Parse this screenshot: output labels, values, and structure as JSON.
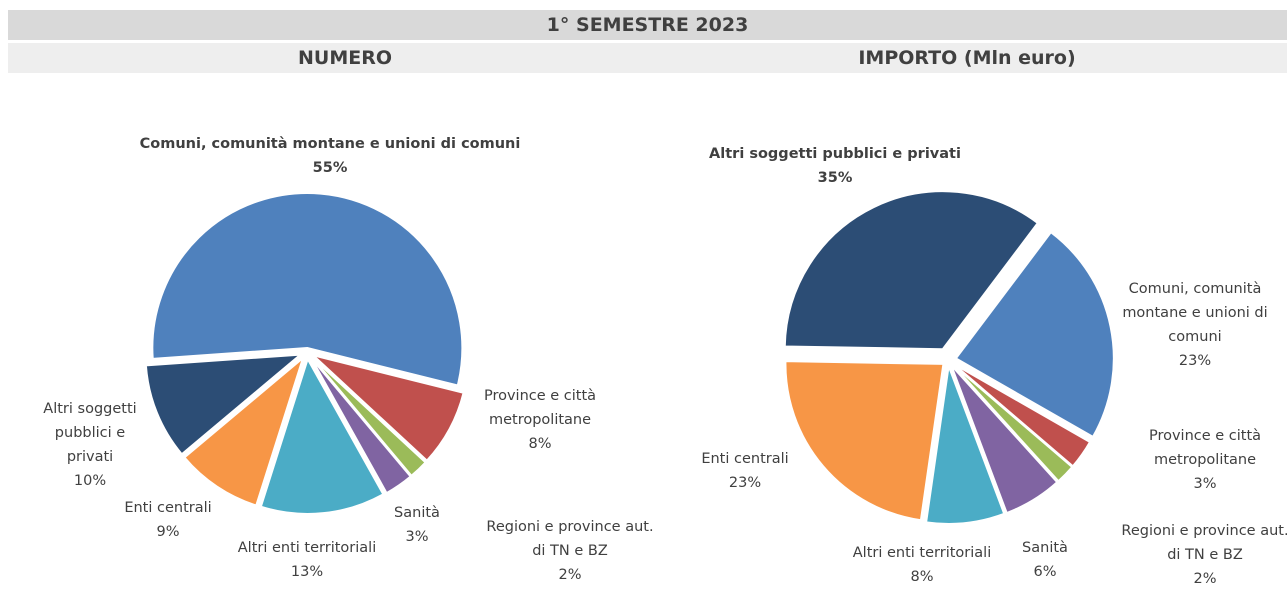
{
  "header": {
    "title": "1° SEMESTRE 2023"
  },
  "chart_data": [
    {
      "type": "pie",
      "title": "NUMERO",
      "categories": [
        "Comuni, comunità montane e unioni di comuni",
        "Province e città metropolitane",
        "Regioni e province aut. di TN e BZ",
        "Sanità",
        "Altri enti territoriali",
        "Enti centrali",
        "Altri soggetti pubblici e privati"
      ],
      "values": [
        55,
        8,
        2,
        3,
        13,
        9,
        10
      ],
      "value_labels": [
        "55%",
        "8%",
        "2%",
        "3%",
        "13%",
        "9%",
        "10%"
      ],
      "colors": [
        "#4f81bd",
        "#c0504d",
        "#9bbb59",
        "#8064a2",
        "#4bacc6",
        "#f79646",
        "#2c4d75"
      ]
    },
    {
      "type": "pie",
      "title": "IMPORTO (Mln euro)",
      "categories": [
        "Altri soggetti pubblici e privati",
        "Comuni, comunità montane e unioni di comuni",
        "Province e città metropolitane",
        "Regioni e province aut. di TN e BZ",
        "Sanità",
        "Altri enti territoriali",
        "Enti centrali"
      ],
      "values": [
        35,
        23,
        3,
        2,
        6,
        8,
        23
      ],
      "value_labels": [
        "35%",
        "23%",
        "3%",
        "2%",
        "6%",
        "8%",
        "23%"
      ],
      "colors": [
        "#2c4d75",
        "#4f81bd",
        "#c0504d",
        "#9bbb59",
        "#8064a2",
        "#4bacc6",
        "#f79646"
      ]
    }
  ]
}
